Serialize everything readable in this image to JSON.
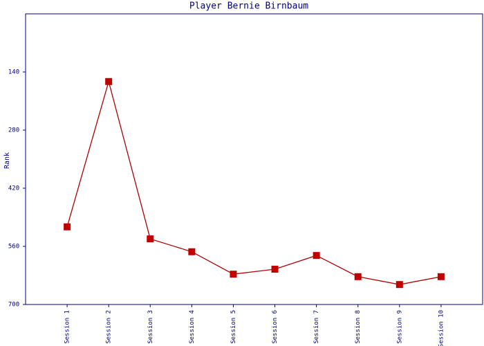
{
  "chart_data": {
    "type": "line",
    "title": "Player Bernie Birnbaum",
    "y_label": "Rank",
    "categories": [
      "Session 1",
      "Session 2",
      "Session 3",
      "Session 4",
      "Session 5",
      "Session 6",
      "Session 7",
      "Session 8",
      "Session 9",
      "Session 10"
    ],
    "values": [
      513,
      163,
      542,
      573,
      627,
      615,
      582,
      633,
      652,
      633
    ],
    "color": "#b00000",
    "marker_color": "#c00000",
    "axis_color": "#000080",
    "ylim": [
      0,
      700
    ],
    "y_inverted": true,
    "yticks": [
      140,
      280,
      420,
      560,
      700
    ],
    "grid": false
  }
}
